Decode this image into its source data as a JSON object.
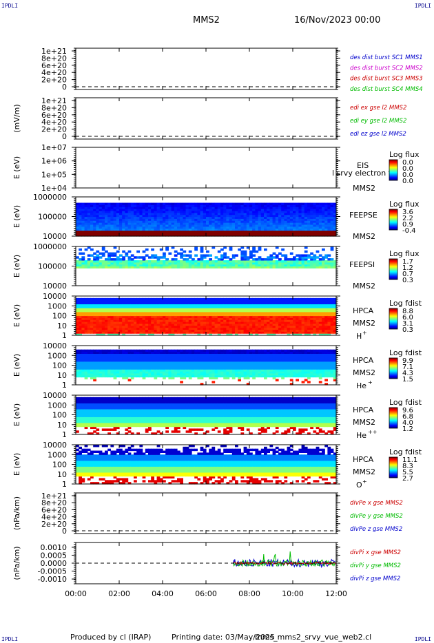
{
  "header": {
    "corner_left": "IPDLI",
    "corner_right": "IPDLI",
    "corner_bottom_left": "IPDLI",
    "corner_bottom_right": "IPDLI",
    "spacecraft": "MMS2",
    "date": "16/Nov/2023 00:00"
  },
  "footer": {
    "produced_by": "Produced by cl (IRAP)",
    "printing_date": "Printing date: 03/May/2025",
    "script_name": "mms_mms2_srvy_vue_web2.cl"
  },
  "chart_data": {
    "type": "stacked-panels",
    "x_ticks": [
      "00:00",
      "02:00",
      "04:00",
      "06:00",
      "08:00",
      "10:00",
      "12:00"
    ],
    "panels": [
      {
        "id": "des-dist",
        "type": "line",
        "ylabel": "",
        "y_ticks": [
          "1e+21",
          "8e+20",
          "6e+20",
          "4e+20",
          "2e+20",
          "0"
        ],
        "ylim": [
          0,
          1e+21
        ],
        "zero_line": true,
        "legend": [
          {
            "text": "des dist burst SC1 MMS1",
            "color": "#0000cc"
          },
          {
            "text": "des dist burst SC2 MMS2",
            "color": "#cc00cc"
          },
          {
            "text": "des dist burst SC3 MMS3",
            "color": "#cc0000"
          },
          {
            "text": "des dist burst SC4 MMS4",
            "color": "#00bb00"
          }
        ]
      },
      {
        "id": "edi-e",
        "type": "line",
        "ylabel": "(mV/m)",
        "y_ticks": [
          "1e+21",
          "8e+20",
          "6e+20",
          "4e+20",
          "2e+20",
          "0"
        ],
        "ylim": [
          0,
          1e+21
        ],
        "zero_line": true,
        "legend": [
          {
            "text": "edi ex gse l2 MMS2",
            "color": "#cc0000"
          },
          {
            "text": "edi ey gse l2 MMS2",
            "color": "#00bb00"
          },
          {
            "text": "edi ez gse l2 MMS2",
            "color": "#0000cc"
          }
        ]
      },
      {
        "id": "eis",
        "type": "heatmap",
        "ylabel": "E (eV)",
        "y_ticks": [
          "1e+07",
          "1e+06",
          "1e+05",
          "1e+04"
        ],
        "labels": [
          "EIS",
          "MMS2"
        ],
        "overlay_text": "l srvy electron to",
        "colorbar": {
          "title": "Log flux",
          "ticks": [
            "0.0",
            "0.0",
            "0.0",
            "0.0"
          ]
        }
      },
      {
        "id": "feepse",
        "type": "heatmap",
        "ylabel": "E (eV)",
        "y_ticks": [
          "1000000",
          "100000",
          "10000"
        ],
        "labels": [
          "FEEPSE",
          "MMS2"
        ],
        "colorbar": {
          "title": "Log flux",
          "ticks": [
            "3.6",
            "2.2",
            "0.9",
            "-0.4"
          ]
        }
      },
      {
        "id": "feepsi",
        "type": "heatmap",
        "ylabel": "E (eV)",
        "y_ticks": [
          "1000000",
          "100000",
          "10000"
        ],
        "labels": [
          "FEEPSI",
          "MMS2"
        ],
        "colorbar": {
          "title": "Log flux",
          "ticks": [
            "1.7",
            "1.2",
            "0.7",
            "0.3"
          ]
        }
      },
      {
        "id": "hpca-h",
        "type": "heatmap",
        "ylabel": "E (eV)",
        "y_ticks": [
          "10000",
          "1000",
          "100",
          "10",
          "1"
        ],
        "labels": [
          "HPCA",
          "MMS2"
        ],
        "species": "H",
        "species_charge": "+",
        "colorbar": {
          "title": "Log fdist",
          "ticks": [
            "8.8",
            "6.0",
            "3.1",
            "0.3"
          ]
        }
      },
      {
        "id": "hpca-he",
        "type": "heatmap",
        "ylabel": "E (eV)",
        "y_ticks": [
          "10000",
          "1000",
          "100",
          "10",
          "1"
        ],
        "labels": [
          "HPCA",
          "MMS2"
        ],
        "species": "He",
        "species_charge": "+",
        "colorbar": {
          "title": "Log fdist",
          "ticks": [
            "9.9",
            "7.1",
            "4.3",
            "1.5"
          ]
        }
      },
      {
        "id": "hpca-he2",
        "type": "heatmap",
        "ylabel": "E (eV)",
        "y_ticks": [
          "10000",
          "1000",
          "100",
          "10",
          "1"
        ],
        "labels": [
          "HPCA",
          "MMS2"
        ],
        "species": "He",
        "species_charge": "++",
        "colorbar": {
          "title": "Log fdist",
          "ticks": [
            "9.6",
            "6.8",
            "4.0",
            "1.2"
          ]
        }
      },
      {
        "id": "hpca-o",
        "type": "heatmap",
        "ylabel": "E (eV)",
        "y_ticks": [
          "10000",
          "1000",
          "100",
          "10",
          "1"
        ],
        "labels": [
          "HPCA",
          "MMS2"
        ],
        "species": "O",
        "species_charge": "+",
        "colorbar": {
          "title": "Log fdist",
          "ticks": [
            "11.1",
            "8.3",
            "5.5",
            "2.7"
          ]
        }
      },
      {
        "id": "divpe",
        "type": "line",
        "ylabel": "(nPa/km)",
        "y_ticks": [
          "1e+21",
          "8e+20",
          "6e+20",
          "4e+20",
          "2e+20",
          "0"
        ],
        "ylim": [
          0,
          1e+21
        ],
        "zero_line": true,
        "legend": [
          {
            "text": "divPe x gse MMS2",
            "color": "#cc0000"
          },
          {
            "text": "divPe y gse MMS2",
            "color": "#00bb00"
          },
          {
            "text": "divPe z gse MMS2",
            "color": "#0000cc"
          }
        ]
      },
      {
        "id": "divpi",
        "type": "line",
        "ylabel": "(nPa/km)",
        "y_ticks": [
          "0.0010",
          "0.0005",
          "0.0000",
          "-0.0005",
          "-0.0010"
        ],
        "ylim": [
          -0.0013,
          0.0013
        ],
        "zero_line": true,
        "data_start_hour": 7.25,
        "legend": [
          {
            "text": "divPi x gse MMS2",
            "color": "#cc0000"
          },
          {
            "text": "divPi y gse MMS2",
            "color": "#00bb00"
          },
          {
            "text": "divPi z gse MMS2",
            "color": "#0000cc"
          }
        ]
      }
    ]
  }
}
